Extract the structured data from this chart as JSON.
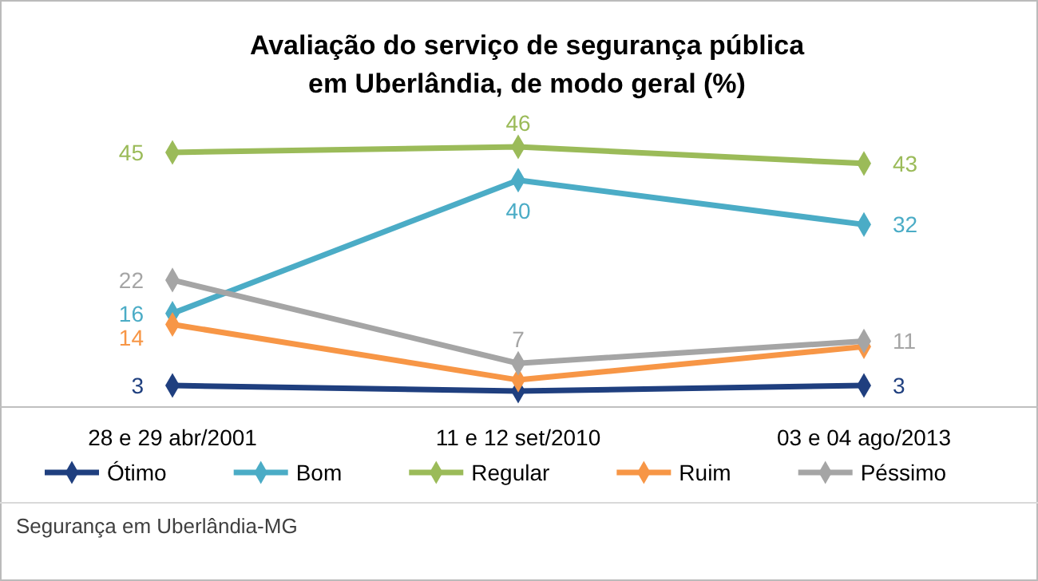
{
  "chart_data": {
    "type": "line",
    "title": "Avaliação do serviço de segurança pública\nem Uberlândia, de modo geral (%)",
    "categories": [
      "28 e 29 abr/2001",
      "11 e 12 set/2010",
      "03 e 04 ago/2013"
    ],
    "series": [
      {
        "name": "Ótimo",
        "color": "#1f3f7f",
        "values": [
          3,
          2,
          3
        ],
        "value_labels": [
          "3",
          null,
          "3"
        ]
      },
      {
        "name": "Bom",
        "color": "#4bacc6",
        "values": [
          16,
          40,
          32
        ],
        "value_labels": [
          "16",
          "40",
          "32"
        ]
      },
      {
        "name": "Regular",
        "color": "#9bbb59",
        "values": [
          45,
          46,
          43
        ],
        "value_labels": [
          "45",
          "46",
          "43"
        ]
      },
      {
        "name": "Ruim",
        "color": "#f79646",
        "values": [
          14,
          4,
          10
        ],
        "value_labels": [
          "14",
          null,
          null
        ]
      },
      {
        "name": "Péssimo",
        "color": "#a5a5a5",
        "values": [
          22,
          7,
          11
        ],
        "value_labels": [
          "22",
          "7",
          "11"
        ]
      }
    ],
    "marker": "diamond",
    "legend": "bottom",
    "annotations": [
      "Segurança em Uberlândia-MG"
    ]
  }
}
